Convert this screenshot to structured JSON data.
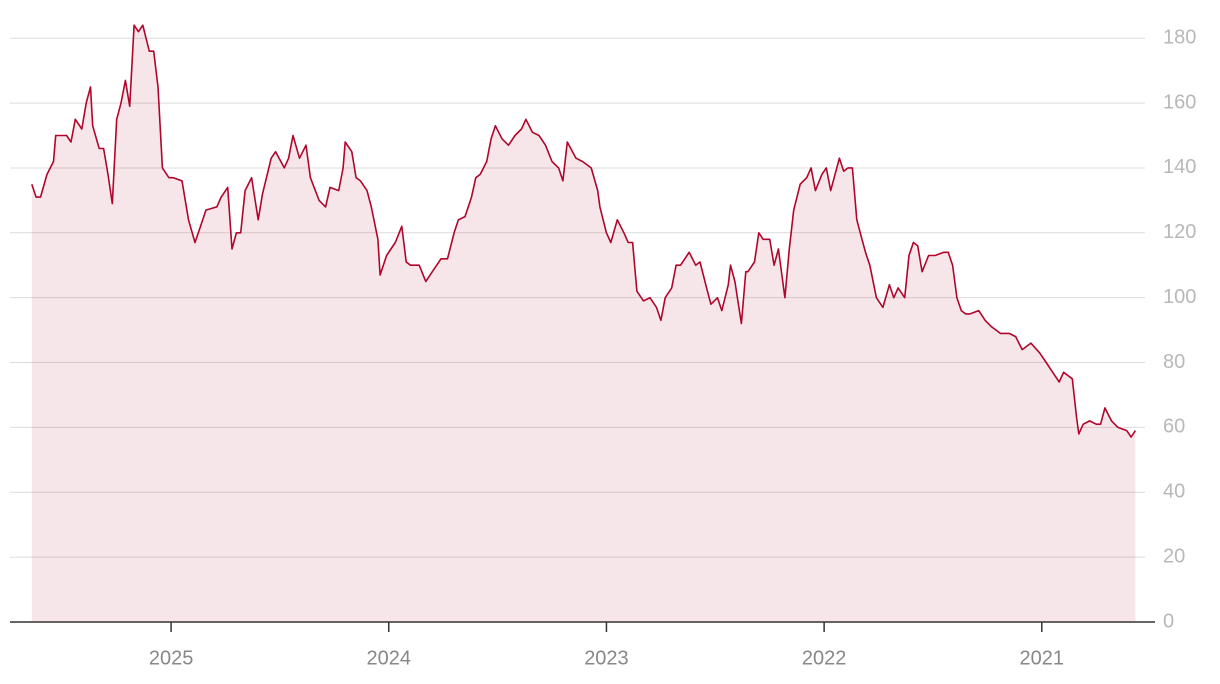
{
  "chart_data": {
    "type": "line",
    "x": [
      2025.64,
      2025.62,
      2025.6,
      2025.57,
      2025.54,
      2025.53,
      2025.48,
      2025.46,
      2025.44,
      2025.41,
      2025.39,
      2025.37,
      2025.36,
      2025.33,
      2025.31,
      2025.29,
      2025.27,
      2025.25,
      2025.23,
      2025.21,
      2025.19,
      2025.17,
      2025.15,
      2025.13,
      2025.1,
      2025.08,
      2025.06,
      2025.04,
      2025.01,
      2024.99,
      2024.95,
      2024.92,
      2024.89,
      2024.86,
      2024.84,
      2024.79,
      2024.77,
      2024.74,
      2024.72,
      2024.7,
      2024.68,
      2024.66,
      2024.63,
      2024.6,
      2024.58,
      2024.54,
      2024.52,
      2024.48,
      2024.46,
      2024.44,
      2024.41,
      2024.38,
      2024.36,
      2024.32,
      2024.29,
      2024.27,
      2024.23,
      2024.21,
      2024.2,
      2024.17,
      2024.15,
      2024.13,
      2024.1,
      2024.08,
      2024.05,
      2024.04,
      2024.01,
      2023.99,
      2023.97,
      2023.94,
      2023.92,
      2023.9,
      2023.86,
      2023.83,
      2023.8,
      2023.76,
      2023.73,
      2023.7,
      2023.68,
      2023.65,
      2023.62,
      2023.6,
      2023.58,
      2023.55,
      2023.53,
      2023.51,
      2023.48,
      2023.45,
      2023.42,
      2023.39,
      2023.37,
      2023.34,
      2023.31,
      2023.28,
      2023.25,
      2023.22,
      2023.2,
      2023.18,
      2023.14,
      2023.11,
      2023.07,
      2023.04,
      2023.03,
      2023.0,
      2022.98,
      2022.95,
      2022.92,
      2022.9,
      2022.88,
      2022.86,
      2022.83,
      2022.8,
      2022.77,
      2022.75,
      2022.73,
      2022.7,
      2022.68,
      2022.66,
      2022.62,
      2022.59,
      2022.57,
      2022.54,
      2022.52,
      2022.49,
      2022.47,
      2022.44,
      2022.43,
      2022.41,
      2022.38,
      2022.36,
      2022.35,
      2022.32,
      2022.3,
      2022.28,
      2022.25,
      2022.23,
      2022.21,
      2022.18,
      2022.16,
      2022.14,
      2022.11,
      2022.08,
      2022.06,
      2022.04,
      2022.01,
      2021.99,
      2021.97,
      2021.93,
      2021.91,
      2021.89,
      2021.87,
      2021.85,
      2021.83,
      2021.81,
      2021.79,
      2021.76,
      2021.73,
      2021.7,
      2021.68,
      2021.66,
      2021.63,
      2021.61,
      2021.59,
      2021.57,
      2021.55,
      2021.52,
      2021.49,
      2021.45,
      2021.43,
      2021.41,
      2021.39,
      2021.37,
      2021.35,
      2021.33,
      2021.29,
      2021.26,
      2021.23,
      2021.19,
      2021.15,
      2021.12,
      2021.09,
      2021.05,
      2021.01,
      2020.98,
      2020.95,
      2020.92,
      2020.9,
      2020.88,
      2020.86,
      2020.84,
      2020.83,
      2020.81,
      2020.78,
      2020.75,
      2020.73,
      2020.71,
      2020.68,
      2020.65,
      2020.61,
      2020.59,
      2020.57
    ],
    "series": [
      {
        "color": "#b0062b",
        "values": [
          135,
          131,
          131,
          138,
          142,
          150,
          150,
          148,
          155,
          152,
          160,
          165,
          153,
          146,
          146,
          138,
          129,
          155,
          160,
          167,
          159,
          184,
          182,
          184,
          176,
          176,
          165,
          140,
          137,
          137,
          136,
          124,
          117,
          123,
          127,
          128,
          131,
          134,
          115,
          120,
          120,
          133,
          137,
          124,
          132,
          143,
          145,
          140,
          143,
          150,
          143,
          147,
          137,
          130,
          128,
          134,
          133,
          140,
          148,
          145,
          137,
          136,
          133,
          128,
          118,
          107,
          113,
          115,
          117,
          122,
          111,
          110,
          110,
          105,
          108,
          112,
          112,
          120,
          124,
          125,
          131,
          137,
          138,
          142,
          149,
          153,
          149,
          147,
          150,
          152,
          155,
          151,
          150,
          147,
          142,
          140,
          136,
          148,
          143,
          142,
          140,
          133,
          128,
          120,
          117,
          124,
          120,
          117,
          117,
          102,
          99,
          100,
          97,
          93,
          100,
          103,
          110,
          110,
          114,
          110,
          111,
          103,
          98,
          100,
          96,
          104,
          110,
          105,
          92,
          108,
          108,
          111,
          120,
          118,
          118,
          110,
          115,
          100,
          115,
          127,
          135,
          137,
          140,
          133,
          138,
          140,
          133,
          143,
          139,
          140,
          140,
          124,
          119,
          114,
          110,
          100,
          97,
          104,
          100,
          103,
          100,
          113,
          117,
          116,
          108,
          113,
          113,
          114,
          114,
          110,
          100,
          96,
          95,
          95,
          96,
          93,
          91,
          89,
          89,
          88,
          84,
          86,
          83,
          80,
          77,
          74,
          77,
          76,
          75,
          63,
          58,
          61,
          62,
          61,
          61,
          66,
          62,
          60,
          59,
          57,
          59
        ]
      }
    ],
    "xlim": [
      2025.74,
      2020.48
    ],
    "xticks": [
      2025,
      2024,
      2023,
      2022,
      2021
    ],
    "ylim": [
      0,
      185
    ],
    "yticks": [
      0,
      20,
      40,
      60,
      80,
      100,
      120,
      140,
      160,
      180
    ],
    "grid": true
  }
}
